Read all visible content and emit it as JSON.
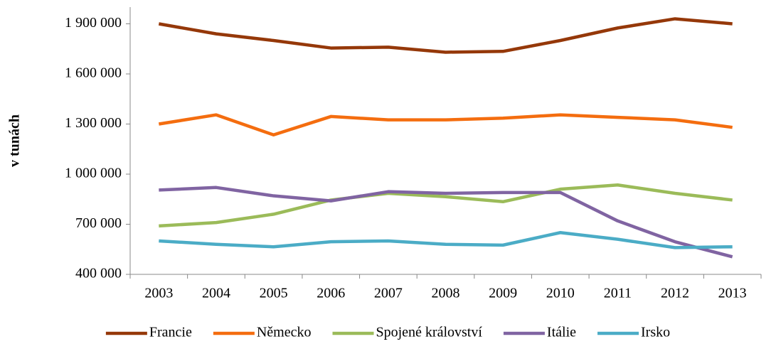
{
  "chart_data": {
    "type": "line",
    "y_label": "v tunách",
    "categories": [
      "2003",
      "2004",
      "2005",
      "2006",
      "2007",
      "2008",
      "2009",
      "2010",
      "2011",
      "2012",
      "2013"
    ],
    "series": [
      {
        "name": "Francie",
        "color": "#953809",
        "values": [
          1900000,
          1840000,
          1800000,
          1755000,
          1760000,
          1730000,
          1735000,
          1800000,
          1875000,
          1930000,
          1900000
        ]
      },
      {
        "name": "Německo",
        "color": "#f46d0f",
        "values": [
          1300000,
          1355000,
          1235000,
          1345000,
          1325000,
          1325000,
          1335000,
          1355000,
          1340000,
          1325000,
          1280000
        ]
      },
      {
        "name": "Spojené království",
        "color": "#9bbb59",
        "values": [
          690000,
          710000,
          760000,
          845000,
          885000,
          865000,
          835000,
          910000,
          935000,
          885000,
          845000
        ]
      },
      {
        "name": "Itálie",
        "color": "#8064a2",
        "values": [
          905000,
          920000,
          870000,
          840000,
          895000,
          885000,
          890000,
          890000,
          720000,
          595000,
          505000
        ]
      },
      {
        "name": "Irsko",
        "color": "#4bacc6",
        "values": [
          600000,
          580000,
          565000,
          595000,
          600000,
          580000,
          575000,
          650000,
          610000,
          560000,
          565000
        ]
      }
    ],
    "ylim": [
      400000,
      2000000
    ],
    "yticks": [
      {
        "value": 400000,
        "label": "400 000"
      },
      {
        "value": 700000,
        "label": "700 000"
      },
      {
        "value": 1000000,
        "label": "1 000 000"
      },
      {
        "value": 1300000,
        "label": "1 300 000"
      },
      {
        "value": 1600000,
        "label": "1 600 000"
      },
      {
        "value": 1900000,
        "label": "1 900 000"
      }
    ],
    "grid": false,
    "legend": "bottom"
  }
}
